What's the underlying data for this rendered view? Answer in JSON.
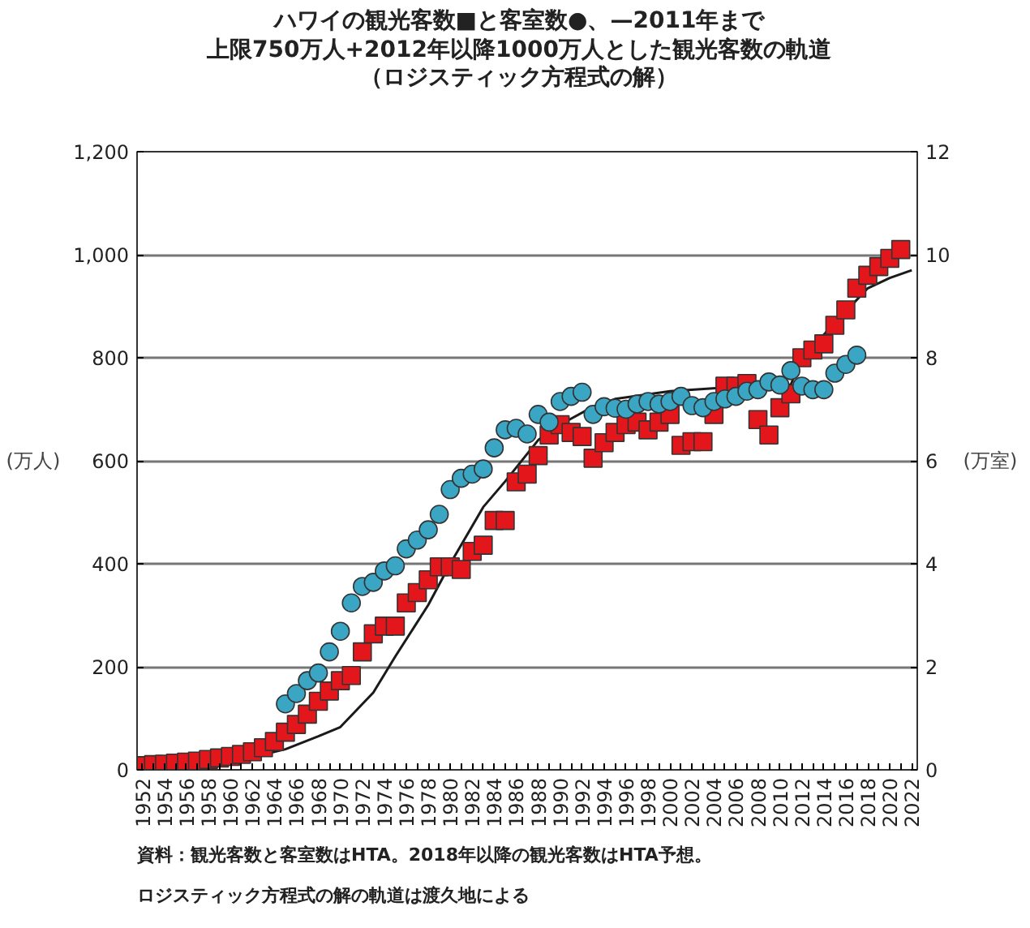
{
  "chart_data": {
    "type": "scatter",
    "title": "ハワイの観光客数■と客室数●、—2011年まで",
    "subtitle": "上限750万人+2012年以降1000万人とした観光客数の軌道（ロジスティック方程式の解）",
    "ylabel": "(万人)",
    "y2label": "(万室)",
    "annotations": [
      "資料：観光客数と客室数はHTA。2018年以降の観光客数はHTA予想。",
      "ロジスティック方程式の解の軌道は渡久地による"
    ],
    "xlim": [
      1951.5,
      2022.5
    ],
    "ylim": [
      0,
      1200
    ],
    "y2lim": [
      0,
      12
    ],
    "yticks": [
      0,
      {
        "value": 200,
        "label": "200"
      },
      {
        "value": 400,
        "label": "400"
      },
      {
        "value": 600,
        "label": "600"
      },
      {
        "value": 800,
        "label": "800"
      },
      {
        "value": 1000,
        "label": "1,000"
      },
      {
        "value": 1200,
        "label": "1,200"
      }
    ],
    "y2ticks": [
      0,
      2,
      4,
      6,
      8,
      10,
      12
    ],
    "xticks": [
      1952,
      {
        "value": 1953,
        "label": null
      },
      1954,
      {
        "value": 1955,
        "label": null
      },
      1956,
      {
        "value": 1957,
        "label": null
      },
      1958,
      {
        "value": 1959,
        "label": null
      },
      1960,
      {
        "value": 1961,
        "label": null
      },
      1962,
      {
        "value": 1963,
        "label": null
      },
      1964,
      {
        "value": 1965,
        "label": null
      },
      1966,
      {
        "value": 1967,
        "label": null
      },
      1968,
      {
        "value": 1969,
        "label": null
      },
      1970,
      {
        "value": 1971,
        "label": null
      },
      1972,
      {
        "value": 1973,
        "label": null
      },
      1974,
      {
        "value": 1975,
        "label": null
      },
      1976,
      {
        "value": 1977,
        "label": null
      },
      1978,
      {
        "value": 1979,
        "label": null
      },
      1980,
      {
        "value": 1981,
        "label": null
      },
      1982,
      {
        "value": 1983,
        "label": null
      },
      1984,
      {
        "value": 1985,
        "label": null
      },
      1986,
      {
        "value": 1987,
        "label": null
      },
      1988,
      {
        "value": 1989,
        "label": null
      },
      1990,
      {
        "value": 1991,
        "label": null
      },
      1992,
      {
        "value": 1993,
        "label": null
      },
      1994,
      {
        "value": 1995,
        "label": null
      },
      1996,
      {
        "value": 1997,
        "label": null
      },
      1998,
      {
        "value": 1999,
        "label": null
      },
      2000,
      {
        "value": 2001,
        "label": null
      },
      2002,
      {
        "value": 2003,
        "label": null
      },
      2004,
      {
        "value": 2005,
        "label": null
      },
      2006,
      {
        "value": 2007,
        "label": null
      },
      2008,
      {
        "value": 2009,
        "label": null
      },
      2010,
      {
        "value": 2011,
        "label": null
      },
      2012,
      {
        "value": 2013,
        "label": null
      },
      2014,
      {
        "value": 2015,
        "label": null
      },
      2016,
      {
        "value": 2017,
        "label": null
      },
      2018,
      {
        "value": 2019,
        "label": null
      },
      2020,
      {
        "value": 2021,
        "label": null
      },
      2022
    ],
    "grid": "y",
    "series": [
      {
        "type": "line",
        "color": "#1a1a1a",
        "line_style": "solid",
        "x": [
          1952,
          1956,
          1960,
          1963,
          1965,
          1968,
          1970,
          1973,
          1975,
          1978,
          1980,
          1983,
          1985,
          1988,
          1990,
          1993,
          1995,
          2000,
          2005,
          2011,
          2012,
          2014,
          2016,
          2018,
          2020,
          2022
        ],
        "values": [
          5,
          10,
          18,
          30,
          40,
          65,
          83,
          150,
          220,
          320,
          400,
          510,
          560,
          640,
          670,
          705,
          720,
          735,
          742,
          748,
          800,
          845,
          890,
          935,
          955,
          970
        ]
      },
      {
        "type": "scatter",
        "marker": "square",
        "color": "#e3171b",
        "x": [
          1952,
          1953,
          1954,
          1955,
          1956,
          1957,
          1958,
          1959,
          1960,
          1961,
          1962,
          1963,
          1964,
          1965,
          1966,
          1967,
          1968,
          1969,
          1970,
          1971,
          1972,
          1973,
          1974,
          1975,
          1976,
          1977,
          1978,
          1979,
          1980,
          1981,
          1982,
          1983,
          1984,
          1985,
          1986,
          1987,
          1988,
          1989,
          1990,
          1991,
          1992,
          1993,
          1994,
          1995,
          1996,
          1997,
          1998,
          1999,
          2000,
          2001,
          2002,
          2003,
          2004,
          2005,
          2006,
          2007,
          2008,
          2009,
          2010,
          2011,
          2012,
          2013,
          2014,
          2015,
          2016,
          2017,
          2018,
          2019,
          2020,
          2021
        ],
        "values": [
          8,
          10,
          11,
          13,
          15,
          17,
          20,
          23,
          26,
          30,
          35,
          43,
          55,
          73,
          88,
          108,
          133,
          153,
          173,
          183,
          229,
          264,
          279,
          279,
          324,
          344,
          369,
          394,
          394,
          389,
          424,
          436,
          484,
          484,
          559,
          574,
          610,
          650,
          670,
          655,
          647,
          605,
          635,
          655,
          670,
          675,
          660,
          675,
          690,
          630,
          637,
          637,
          690,
          745,
          745,
          750,
          680,
          650,
          703,
          730,
          800,
          815,
          827,
          863,
          893,
          935,
          960,
          977,
          993,
          1010
        ]
      },
      {
        "type": "scatter",
        "marker": "circle",
        "color": "#3aa6c4",
        "axis": "y2",
        "x": [
          1965,
          1966,
          1967,
          1968,
          1969,
          1970,
          1971,
          1972,
          1973,
          1974,
          1975,
          1976,
          1977,
          1978,
          1979,
          1980,
          1981,
          1982,
          1983,
          1984,
          1985,
          1986,
          1987,
          1988,
          1989,
          1990,
          1991,
          1992,
          1993,
          1994,
          1995,
          1996,
          1997,
          1998,
          1999,
          2000,
          2001,
          2002,
          2003,
          2004,
          2005,
          2006,
          2007,
          2008,
          2009,
          2010,
          2011,
          2012,
          2013,
          2014,
          2015,
          2016,
          2017
        ],
        "values": [
          1.28,
          1.48,
          1.73,
          1.88,
          2.29,
          2.69,
          3.24,
          3.56,
          3.64,
          3.86,
          3.96,
          4.29,
          4.46,
          4.66,
          4.96,
          5.44,
          5.66,
          5.74,
          5.84,
          6.25,
          6.6,
          6.63,
          6.52,
          6.9,
          6.75,
          7.15,
          7.25,
          7.33,
          6.9,
          7.05,
          7.02,
          7.0,
          7.1,
          7.15,
          7.1,
          7.15,
          7.25,
          7.07,
          7.03,
          7.15,
          7.2,
          7.25,
          7.35,
          7.38,
          7.53,
          7.47,
          7.75,
          7.45,
          7.38,
          7.38,
          7.7,
          7.87,
          8.05
        ]
      }
    ]
  }
}
